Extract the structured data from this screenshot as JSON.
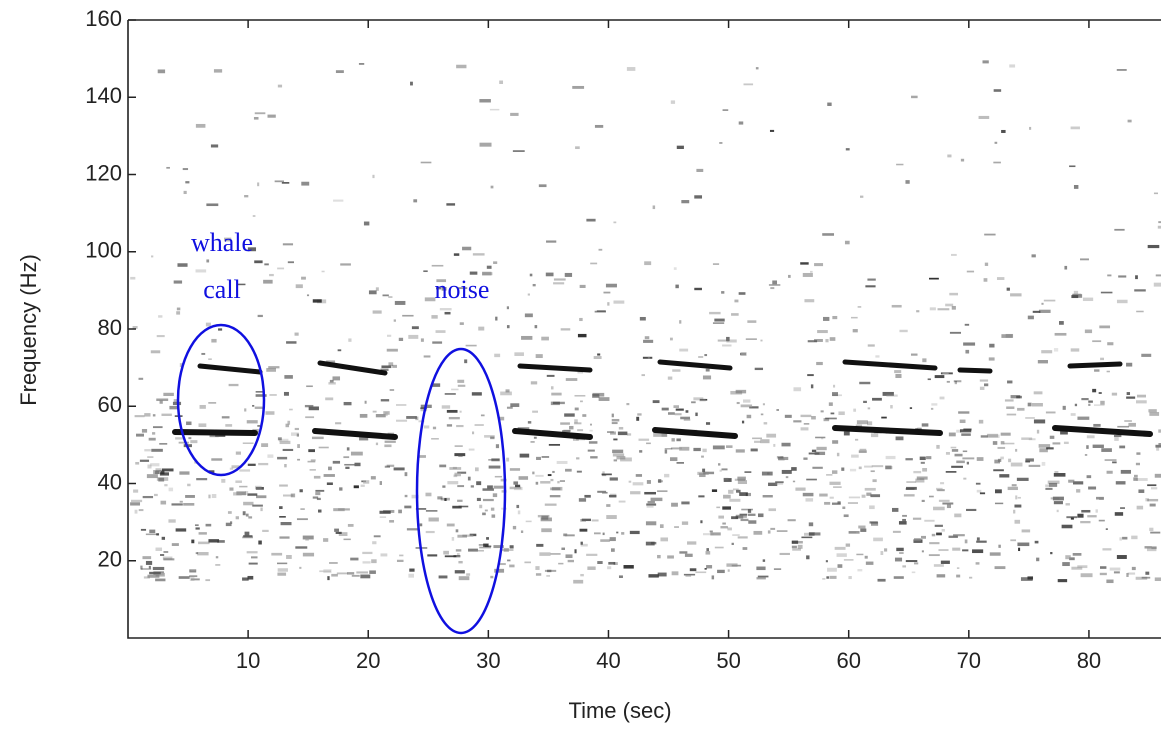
{
  "chart_data": {
    "type": "spectrogram",
    "x_label": "Time (sec)",
    "y_label": "Frequency (Hz)",
    "xlim": [
      0,
      86
    ],
    "xticks": [
      10,
      20,
      30,
      40,
      50,
      60,
      70,
      80
    ],
    "ylim": [
      0,
      160
    ],
    "yticks": [
      20,
      40,
      60,
      80,
      100,
      120,
      140,
      160
    ],
    "annotations": [
      {
        "lines": [
          "whale",
          "call"
        ],
        "color": "#1010e0"
      },
      {
        "lines": [
          "noise"
        ],
        "color": "#1010e0"
      }
    ]
  }
}
